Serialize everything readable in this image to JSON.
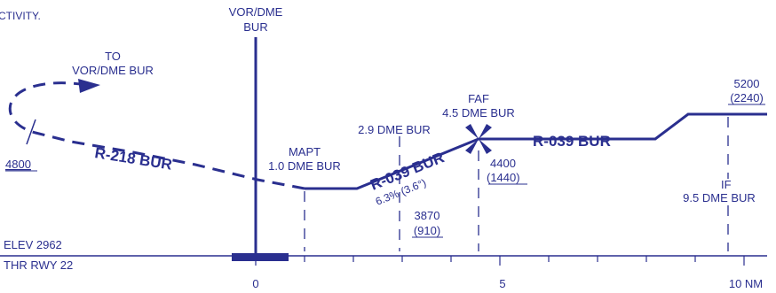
{
  "header_fragment": "CTIVITY.",
  "vor": {
    "name": "VOR/DME",
    "id": "BUR"
  },
  "missed_approach_to": {
    "line1": "TO",
    "line2": "VOR/DME BUR"
  },
  "hold_altitude": "4800",
  "inbound_radial": "R-218 BUR",
  "final_radial": "R-039 BUR",
  "final_gradient": "6.3% (3.6°)",
  "outbound_radial": "R-039 BUR",
  "mapt": {
    "label": "MAPT",
    "dme": "1.0 DME BUR"
  },
  "dme_fix": "2.9 DME BUR",
  "faf": {
    "label": "FAF",
    "dme": "4.5 DME BUR"
  },
  "alt_3870": {
    "msl": "3870",
    "agl": "(910)"
  },
  "alt_4400": {
    "msl": "4400",
    "agl": "(1440)"
  },
  "alt_5200": {
    "msl": "5200",
    "agl": "(2240)"
  },
  "if_fix": {
    "label": "IF",
    "dme": "9.5 DME BUR"
  },
  "elev": "ELEV 2962",
  "thr": "THR RWY 22",
  "scale": {
    "zero": "0",
    "five": "5",
    "ten": "10 NM"
  },
  "colors": {
    "ink": "#2a2f8f"
  }
}
